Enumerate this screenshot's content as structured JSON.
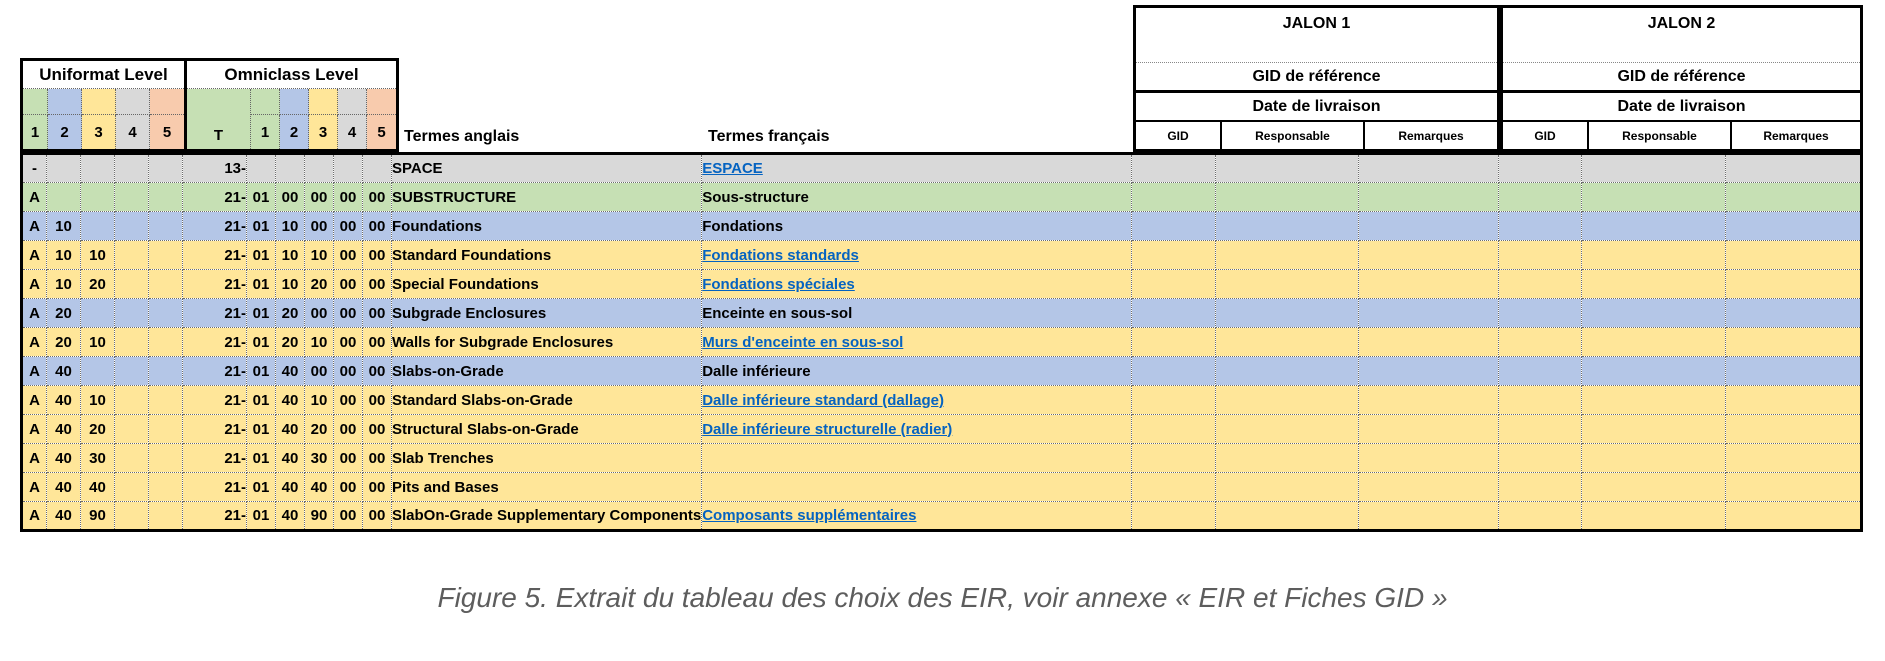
{
  "header": {
    "uniformat_title": "Uniformat Level",
    "omniclass_title": "Omniclass Level",
    "uniformat_cols": [
      "1",
      "2",
      "3",
      "4",
      "5"
    ],
    "omniclass_t": "T",
    "omniclass_cols": [
      "1",
      "2",
      "3",
      "4",
      "5"
    ],
    "termes_anglais": "Termes anglais",
    "termes_francais": "Termes français",
    "level_colors": [
      "#c6e0b4",
      "#b4c6e7",
      "#ffe699",
      "#d9d9d9",
      "#f8cbad"
    ]
  },
  "jalons": [
    {
      "title": "JALON 1",
      "gid_ref": "GID de référence",
      "date": "Date de livraison",
      "cols": [
        "GID",
        "Responsable",
        "Remarques"
      ]
    },
    {
      "title": "JALON 2",
      "gid_ref": "GID de référence",
      "date": "Date de livraison",
      "cols": [
        "GID",
        "Responsable",
        "Remarques"
      ]
    }
  ],
  "rows": [
    {
      "color": "gray",
      "size": "big",
      "uniformat": [
        "-",
        "",
        "",
        "",
        ""
      ],
      "omniclass": [
        "13-",
        "",
        "",
        "",
        "",
        ""
      ],
      "en": "SPACE",
      "fr": "ESPACE",
      "fr_link": true
    },
    {
      "color": "green",
      "size": "big",
      "uniformat": [
        "A",
        "",
        "",
        "",
        ""
      ],
      "omniclass": [
        "21-",
        "01",
        "00",
        "00",
        "00",
        "00"
      ],
      "en": "SUBSTRUCTURE",
      "fr": "Sous-structure",
      "fr_link": false
    },
    {
      "color": "blue",
      "size": "big",
      "uniformat": [
        "A",
        "10",
        "",
        "",
        ""
      ],
      "omniclass": [
        "21-",
        "01",
        "10",
        "00",
        "00",
        "00"
      ],
      "en": "Foundations",
      "fr": "Fondations",
      "fr_link": false
    },
    {
      "color": "yellow",
      "size": "small",
      "uniformat": [
        "A",
        "10",
        "10",
        "",
        ""
      ],
      "omniclass": [
        "21-",
        "01",
        "10",
        "10",
        "00",
        "00"
      ],
      "en": "Standard Foundations",
      "fr": "Fondations standards",
      "fr_link": true
    },
    {
      "color": "yellow",
      "size": "small",
      "uniformat": [
        "A",
        "10",
        "20",
        "",
        ""
      ],
      "omniclass": [
        "21-",
        "01",
        "10",
        "20",
        "00",
        "00"
      ],
      "en": "Special Foundations",
      "fr": "Fondations spéciales",
      "fr_link": true
    },
    {
      "color": "blue",
      "size": "big",
      "uniformat": [
        "A",
        "20",
        "",
        "",
        ""
      ],
      "omniclass": [
        "21-",
        "01",
        "20",
        "00",
        "00",
        "00"
      ],
      "en": "Subgrade Enclosures",
      "fr": "Enceinte en sous-sol",
      "fr_link": false
    },
    {
      "color": "yellow",
      "size": "small",
      "uniformat": [
        "A",
        "20",
        "10",
        "",
        ""
      ],
      "omniclass": [
        "21-",
        "01",
        "20",
        "10",
        "00",
        "00"
      ],
      "en": "Walls for Subgrade Enclosures",
      "fr": "Murs d'enceinte en sous-sol",
      "fr_link": true
    },
    {
      "color": "blue",
      "size": "big",
      "uniformat": [
        "A",
        "40",
        "",
        "",
        ""
      ],
      "omniclass": [
        "21-",
        "01",
        "40",
        "00",
        "00",
        "00"
      ],
      "en": "Slabs-on-Grade",
      "fr": "Dalle inférieure",
      "fr_link": false
    },
    {
      "color": "yellow",
      "size": "small",
      "uniformat": [
        "A",
        "40",
        "10",
        "",
        ""
      ],
      "omniclass": [
        "21-",
        "01",
        "40",
        "10",
        "00",
        "00"
      ],
      "en": "Standard Slabs-on-Grade",
      "fr": "Dalle inférieure standard (dallage)",
      "fr_link": true
    },
    {
      "color": "yellow",
      "size": "small",
      "uniformat": [
        "A",
        "40",
        "20",
        "",
        ""
      ],
      "omniclass": [
        "21-",
        "01",
        "40",
        "20",
        "00",
        "00"
      ],
      "en": "Structural Slabs-on-Grade",
      "fr": "Dalle inférieure structurelle (radier)",
      "fr_link": true
    },
    {
      "color": "yellow",
      "size": "small",
      "uniformat": [
        "A",
        "40",
        "30",
        "",
        ""
      ],
      "omniclass": [
        "21-",
        "01",
        "40",
        "30",
        "00",
        "00"
      ],
      "en": "Slab Trenches",
      "fr": "",
      "fr_link": false
    },
    {
      "color": "yellow",
      "size": "small",
      "uniformat": [
        "A",
        "40",
        "40",
        "",
        ""
      ],
      "omniclass": [
        "21-",
        "01",
        "40",
        "40",
        "00",
        "00"
      ],
      "en": "Pits and Bases",
      "fr": "",
      "fr_link": false
    },
    {
      "color": "yellow",
      "size": "small",
      "uniformat": [
        "A",
        "40",
        "90",
        "",
        ""
      ],
      "omniclass": [
        "21-",
        "01",
        "40",
        "90",
        "00",
        "00"
      ],
      "en": "SlabOn-Grade Supplementary Components",
      "fr": "Composants supplémentaires",
      "fr_link": true
    }
  ],
  "colors": {
    "row_gray": "#d9d9d9",
    "row_green": "#c6e0b4",
    "row_blue": "#b4c6e7",
    "row_yellow": "#ffe699",
    "link": "#0563c1",
    "caption_text": "#5d5d5d"
  },
  "caption": "Figure 5. Extrait du tableau des choix des EIR, voir annexe « EIR et Fiches GID »"
}
